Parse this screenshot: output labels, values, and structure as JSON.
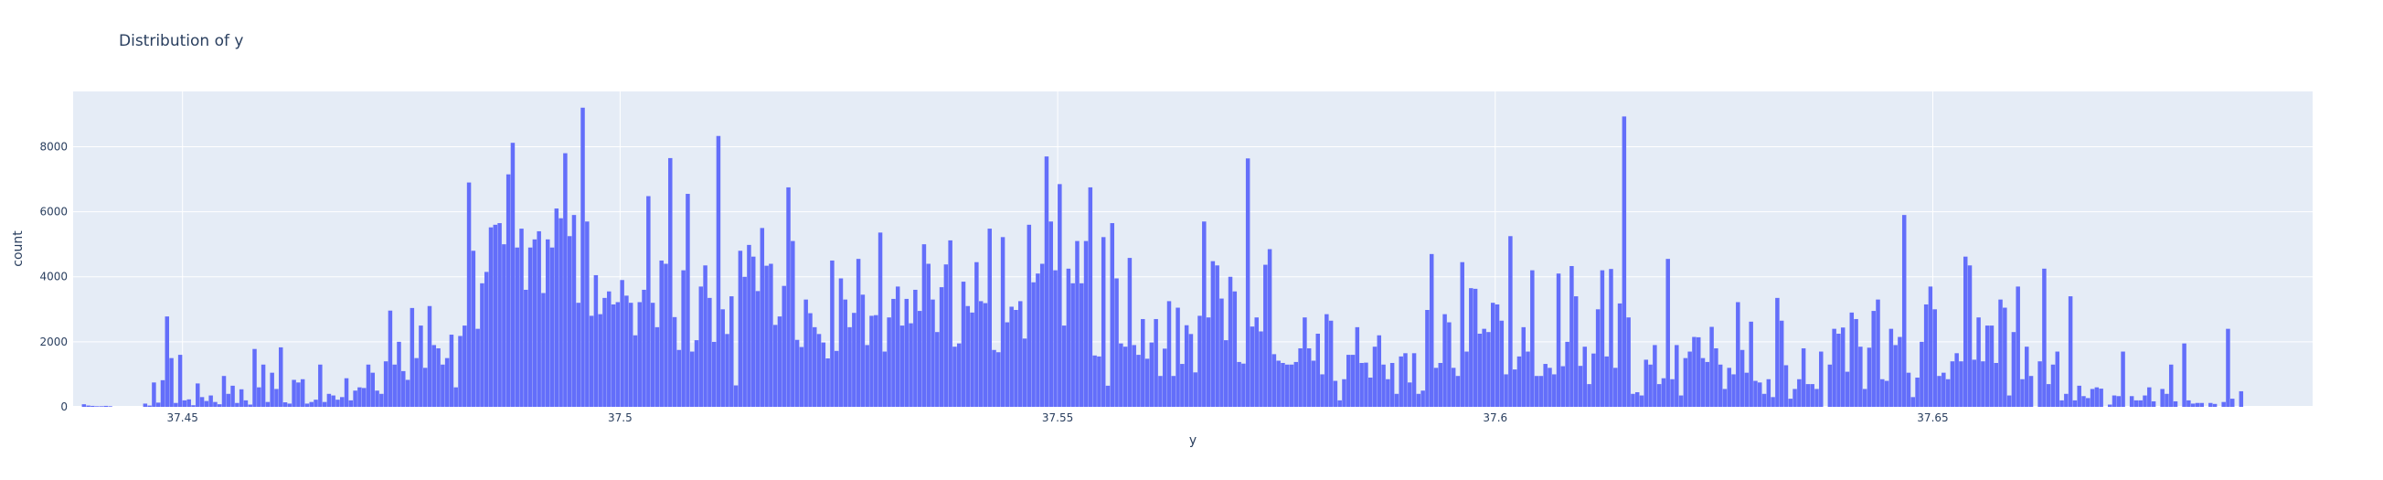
{
  "chart_data": {
    "type": "bar",
    "title": "Distribution of y",
    "xlabel": "y",
    "ylabel": "count",
    "xlim": [
      37.4375,
      37.6934
    ],
    "ylim": [
      0,
      9700
    ],
    "bin_start": 37.4385,
    "bin_width": 0.0005,
    "x_ticks": [
      {
        "value": 37.45,
        "label": "37.45"
      },
      {
        "value": 37.5,
        "label": "37.5"
      },
      {
        "value": 37.55,
        "label": "37.55"
      },
      {
        "value": 37.6,
        "label": "37.6"
      },
      {
        "value": 37.65,
        "label": "37.65"
      }
    ],
    "y_ticks": [
      {
        "value": 0,
        "label": "0"
      },
      {
        "value": 2000,
        "label": "2000"
      },
      {
        "value": 4000,
        "label": "4000"
      },
      {
        "value": 6000,
        "label": "6000"
      },
      {
        "value": 8000,
        "label": "8000"
      }
    ],
    "grid": true,
    "bar_color": "#636efa",
    "plot_background": "#e5ecf6",
    "values": [
      80,
      40,
      30,
      20,
      20,
      30,
      20,
      0,
      0,
      0,
      0,
      0,
      0,
      0,
      100,
      40,
      750,
      130,
      820,
      2780,
      1500,
      120,
      1600,
      200,
      230,
      50,
      720,
      300,
      180,
      350,
      150,
      80,
      950,
      400,
      650,
      120,
      540,
      200,
      70,
      1780,
      600,
      1300,
      150,
      1050,
      550,
      1830,
      140,
      100,
      830,
      750,
      850,
      100,
      150,
      220,
      1300,
      150,
      400,
      350,
      220,
      300,
      880,
      200,
      500,
      600,
      580,
      1300,
      1050,
      500,
      400,
      1400,
      2960,
      1300,
      2000,
      1100,
      830,
      3040,
      1500,
      2500,
      1200,
      3100,
      1900,
      1800,
      1300,
      1500,
      2220,
      600,
      2180,
      2500,
      6900,
      4800,
      2400,
      3800,
      4150,
      5520,
      5600,
      5650,
      5000,
      7150,
      8120,
      4900,
      5480,
      3600,
      4900,
      5150,
      5400,
      3500,
      5150,
      4900,
      6100,
      5800,
      7800,
      5250,
      5900,
      3200,
      9200,
      5700,
      2800,
      4050,
      2850,
      3350,
      3550,
      3150,
      3220,
      3900,
      3420,
      3200,
      2200,
      3220,
      3600,
      6480,
      3200,
      2450,
      4500,
      4400,
      7650,
      2760,
      1750,
      4200,
      6550,
      1700,
      2050,
      3700,
      4350,
      3350,
      2000,
      8330,
      3000,
      2240,
      3400,
      660,
      4800,
      4000,
      4980,
      4620,
      3560,
      5500,
      4340,
      4400,
      2520,
      2780,
      3720,
      6750,
      5100,
      2060,
      1840,
      3300,
      2880,
      2450,
      2240,
      1980,
      1490,
      4500,
      1720,
      3950,
      3300,
      2450,
      2890,
      4550,
      3450,
      1900,
      2800,
      2820,
      5360,
      1700,
      2750,
      3320,
      3700,
      2500,
      3320,
      2570,
      3600,
      2950,
      5000,
      4400,
      3300,
      2300,
      3680,
      4380,
      5120,
      1850,
      1950,
      3850,
      3100,
      2900,
      4450,
      3250,
      3190,
      5480,
      1750,
      1680,
      5220,
      2600,
      3080,
      2980,
      3250,
      2100,
      5600,
      3830,
      4100,
      4400,
      7700,
      5700,
      4200,
      6850,
      2500,
      4250,
      3800,
      5100,
      3800,
      5100,
      6750,
      1580,
      1550,
      5220,
      650,
      5650,
      3950,
      1950,
      1850,
      4580,
      1900,
      1600,
      2700,
      1480,
      1980,
      2700,
      950,
      1790,
      3250,
      950,
      3050,
      1320,
      2510,
      2240,
      1060,
      2800,
      5700,
      2750,
      4480,
      4350,
      3330,
      2050,
      4000,
      3550,
      1380,
      1330,
      7640,
      2470,
      2750,
      2320,
      4370,
      4850,
      1620,
      1420,
      1350,
      1300,
      1300,
      1380,
      1800,
      2750,
      1800,
      1420,
      2250,
      1000,
      2850,
      2650,
      800,
      200,
      850,
      1600,
      1600,
      2450,
      1350,
      1360,
      900,
      1850,
      2200,
      1300,
      850,
      1350,
      400,
      1550,
      1650,
      750,
      1650,
      400,
      500,
      2980,
      4700,
      1200,
      1350,
      2850,
      2600,
      1200,
      950,
      4450,
      1700,
      3650,
      3630,
      2250,
      2400,
      2300,
      3200,
      3150,
      2650,
      1000,
      5250,
      1150,
      1550,
      2450,
      1700,
      4200,
      950,
      950,
      1320,
      1200,
      1000,
      4100,
      1250,
      2000,
      4330,
      3400,
      1260,
      1850,
      700,
      1640,
      3000,
      4200,
      1550,
      4240,
      1200,
      3180,
      8930,
      2750,
      400,
      450,
      350,
      1450,
      1300,
      1900,
      700,
      880,
      4550,
      850,
      1900,
      350,
      1500,
      1700,
      2150,
      2140,
      1500,
      1380,
      2460,
      1800,
      1300,
      550,
      1200,
      1000,
      3220,
      1750,
      1050,
      2620,
      800,
      750,
      400,
      850,
      300,
      3350,
      2650,
      1280,
      250,
      550,
      850,
      1800,
      700,
      700,
      550,
      1700,
      0,
      1300,
      2400,
      2250,
      2440,
      1080,
      2900,
      2700,
      1850,
      550,
      1820,
      2950,
      3300,
      850,
      800,
      2400,
      1900,
      2150,
      5900,
      1050,
      300,
      900,
      2000,
      3150,
      3700,
      3000,
      950,
      1050,
      850,
      1400,
      1650,
      1400,
      4620,
      4350,
      1450,
      2750,
      1400,
      2500,
      2500,
      1350,
      3300,
      3050,
      350,
      2300,
      3700,
      850,
      1850,
      950,
      0,
      1400,
      4250,
      700,
      1300,
      1700,
      200,
      400,
      3400,
      200,
      650,
      330,
      270,
      550,
      600,
      560,
      0,
      70,
      350,
      330,
      1700,
      0,
      330,
      200,
      200,
      350,
      600,
      170,
      0,
      550,
      400,
      1300,
      170,
      0,
      1950,
      200,
      100,
      120,
      120,
      0,
      120,
      90,
      0,
      150,
      2400,
      250,
      0,
      480,
      0
    ]
  }
}
